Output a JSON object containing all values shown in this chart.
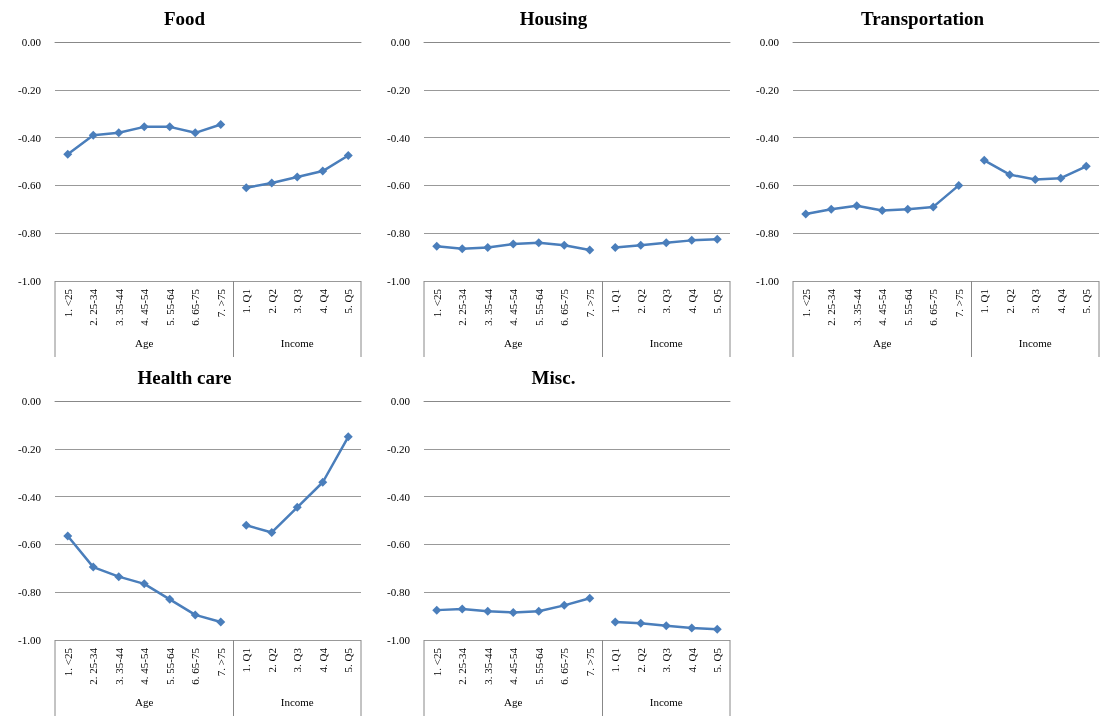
{
  "chart_data": [
    {
      "type": "line",
      "title": "Food",
      "categories": [
        "1. <25",
        "2. 25-34",
        "3. 35-44",
        "4. 45-54",
        "5. 55-64",
        "6. 65-75",
        "7. >75",
        "1. Q1",
        "2. Q2",
        "3. Q3",
        "4. Q4",
        "5. Q5"
      ],
      "series": [
        {
          "color": "#4a7ebb",
          "values": [
            -0.47,
            -0.39,
            -0.38,
            -0.355,
            -0.355,
            -0.38,
            -0.345,
            null,
            null,
            null,
            null,
            null
          ]
        },
        {
          "color": "#4a7ebb",
          "values": [
            null,
            null,
            null,
            null,
            null,
            null,
            null,
            -0.61,
            -0.59,
            -0.565,
            -0.54,
            -0.475
          ]
        }
      ],
      "annotations": [
        "Age",
        "Income"
      ],
      "ylim": [
        -1,
        0
      ],
      "yticks": [
        {
          "value": -1,
          "label": "-1.00"
        },
        {
          "value": -0.8,
          "label": "-0.80"
        },
        {
          "value": -0.6,
          "label": "-0.60"
        },
        {
          "value": -0.4,
          "label": "-0.40"
        },
        {
          "value": -0.2,
          "label": "-0.20"
        },
        {
          "value": 0,
          "label": "0.00"
        }
      ],
      "grid": "y",
      "marker": "diamond",
      "line_style": "solid"
    },
    {
      "type": "line",
      "title": "Housing",
      "categories": [
        "1. <25",
        "2. 25-34",
        "3. 35-44",
        "4. 45-54",
        "5. 55-64",
        "6. 65-75",
        "7. >75",
        "1. Q1",
        "2. Q2",
        "3. Q3",
        "4. Q4",
        "5. Q5"
      ],
      "series": [
        {
          "color": "#4a7ebb",
          "values": [
            -0.855,
            -0.865,
            -0.86,
            -0.845,
            -0.84,
            -0.85,
            -0.87,
            null,
            null,
            null,
            null,
            null
          ]
        },
        {
          "color": "#4a7ebb",
          "values": [
            null,
            null,
            null,
            null,
            null,
            null,
            null,
            -0.86,
            -0.85,
            -0.84,
            -0.83,
            -0.825
          ]
        }
      ],
      "annotations": [
        "Age",
        "Income"
      ],
      "ylim": [
        -1,
        0
      ],
      "yticks": [
        {
          "value": -1,
          "label": "-1.00"
        },
        {
          "value": -0.8,
          "label": "-0.80"
        },
        {
          "value": -0.6,
          "label": "-0.60"
        },
        {
          "value": -0.4,
          "label": "-0.40"
        },
        {
          "value": -0.2,
          "label": "-0.20"
        },
        {
          "value": 0,
          "label": "0.00"
        }
      ],
      "grid": "y",
      "marker": "diamond",
      "line_style": "solid"
    },
    {
      "type": "line",
      "title": "Transportation",
      "categories": [
        "1. <25",
        "2. 25-34",
        "3. 35-44",
        "4. 45-54",
        "5. 55-64",
        "6. 65-75",
        "7. >75",
        "1. Q1",
        "2. Q2",
        "3. Q3",
        "4. Q4",
        "5. Q5"
      ],
      "series": [
        {
          "color": "#4a7ebb",
          "values": [
            -0.72,
            -0.7,
            -0.685,
            -0.705,
            -0.7,
            -0.69,
            -0.6,
            null,
            null,
            null,
            null,
            null
          ]
        },
        {
          "color": "#4a7ebb",
          "values": [
            null,
            null,
            null,
            null,
            null,
            null,
            null,
            -0.495,
            -0.555,
            -0.575,
            -0.57,
            -0.52
          ]
        }
      ],
      "annotations": [
        "Age",
        "Income"
      ],
      "ylim": [
        -1,
        0
      ],
      "yticks": [
        {
          "value": -1,
          "label": "-1.00"
        },
        {
          "value": -0.8,
          "label": "-0.80"
        },
        {
          "value": -0.6,
          "label": "-0.60"
        },
        {
          "value": -0.4,
          "label": "-0.40"
        },
        {
          "value": -0.2,
          "label": "-0.20"
        },
        {
          "value": 0,
          "label": "0.00"
        }
      ],
      "grid": "y",
      "marker": "diamond",
      "line_style": "solid"
    },
    {
      "type": "line",
      "title": "Health care",
      "categories": [
        "1. <25",
        "2. 25-34",
        "3. 35-44",
        "4. 45-54",
        "5. 55-64",
        "6. 65-75",
        "7. >75",
        "1. Q1",
        "2. Q2",
        "3. Q3",
        "4. Q4",
        "5. Q5"
      ],
      "series": [
        {
          "color": "#4a7ebb",
          "values": [
            -0.565,
            -0.695,
            -0.735,
            -0.765,
            -0.83,
            -0.895,
            -0.925,
            null,
            null,
            null,
            null,
            null
          ]
        },
        {
          "color": "#4a7ebb",
          "values": [
            null,
            null,
            null,
            null,
            null,
            null,
            null,
            -0.52,
            -0.55,
            -0.445,
            -0.34,
            -0.15
          ]
        }
      ],
      "annotations": [
        "Age",
        "Income"
      ],
      "ylim": [
        -1,
        0
      ],
      "yticks": [
        {
          "value": -1,
          "label": "-1.00"
        },
        {
          "value": -0.8,
          "label": "-0.80"
        },
        {
          "value": -0.6,
          "label": "-0.60"
        },
        {
          "value": -0.4,
          "label": "-0.40"
        },
        {
          "value": -0.2,
          "label": "-0.20"
        },
        {
          "value": 0,
          "label": "0.00"
        }
      ],
      "grid": "y",
      "marker": "diamond",
      "line_style": "solid"
    },
    {
      "type": "line",
      "title": "Misc.",
      "categories": [
        "1. <25",
        "2. 25-34",
        "3. 35-44",
        "4. 45-54",
        "5. 55-64",
        "6. 65-75",
        "7. >75",
        "1. Q1",
        "2. Q2",
        "3. Q3",
        "4. Q4",
        "5. Q5"
      ],
      "series": [
        {
          "color": "#4a7ebb",
          "values": [
            -0.875,
            -0.87,
            -0.88,
            -0.885,
            -0.88,
            -0.855,
            -0.825,
            null,
            null,
            null,
            null,
            null
          ]
        },
        {
          "color": "#4a7ebb",
          "values": [
            null,
            null,
            null,
            null,
            null,
            null,
            null,
            -0.925,
            -0.93,
            -0.94,
            -0.95,
            -0.955
          ]
        }
      ],
      "annotations": [
        "Age",
        "Income"
      ],
      "ylim": [
        -1,
        0
      ],
      "yticks": [
        {
          "value": -1,
          "label": "-1.00"
        },
        {
          "value": -0.8,
          "label": "-0.80"
        },
        {
          "value": -0.6,
          "label": "-0.60"
        },
        {
          "value": -0.4,
          "label": "-0.40"
        },
        {
          "value": -0.2,
          "label": "-0.20"
        },
        {
          "value": 0,
          "label": "0.00"
        }
      ],
      "grid": "y",
      "marker": "diamond",
      "line_style": "solid"
    }
  ]
}
